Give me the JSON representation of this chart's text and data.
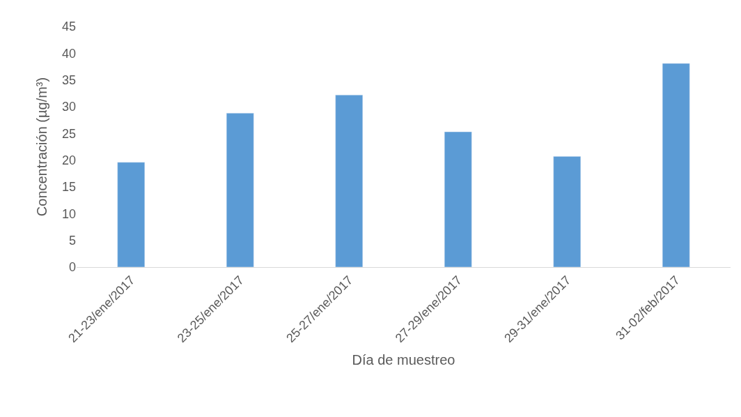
{
  "chart_data": {
    "type": "bar",
    "xlabel": "Día de muestreo",
    "ylabel": "Concentración (µg/m³)",
    "categories": [
      "21-23/ene/2017",
      "23-25/ene/2017",
      "25-27/ene/2017",
      "27-29/ene/2017",
      "29-31/ene/2017",
      "31-02/feb/2017"
    ],
    "values": [
      19.6,
      28.8,
      32.2,
      25.3,
      20.7,
      38.1
    ],
    "color": "#5b9bd5",
    "ylim": [
      0,
      45
    ],
    "yticks": [
      0,
      5,
      10,
      15,
      20,
      25,
      30,
      35,
      40,
      45
    ]
  }
}
